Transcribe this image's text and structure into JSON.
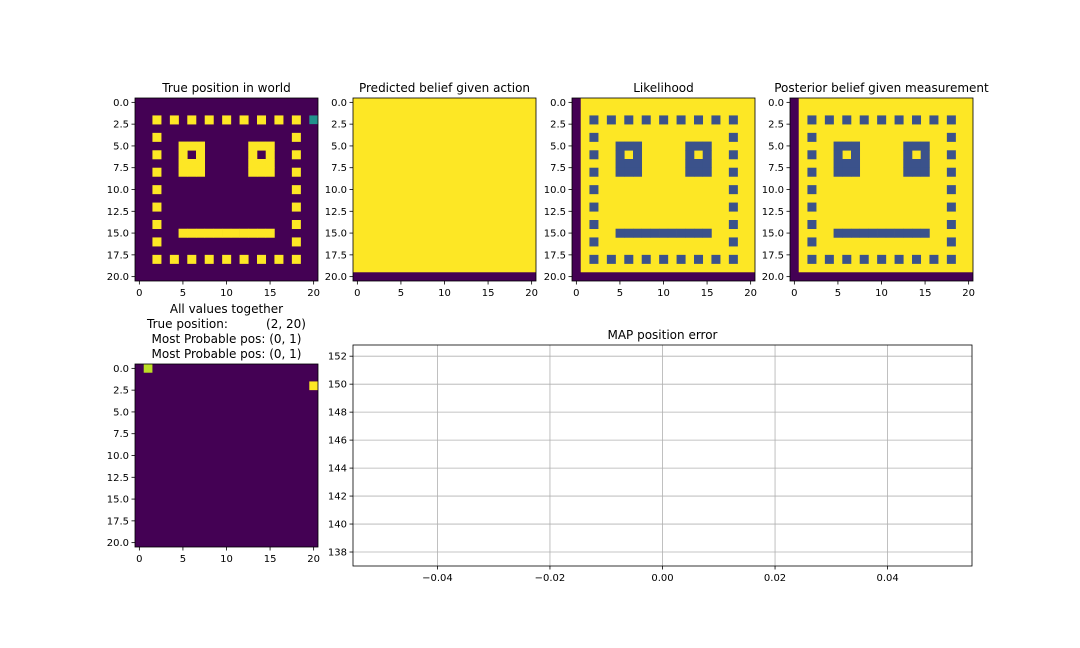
{
  "colors": {
    "purple": "#440154",
    "yellow": "#fde725",
    "blue": "#3b528b",
    "teal": "#21918c",
    "lime": "#bddf26",
    "grid": "#b0b0b0",
    "axis": "#000000"
  },
  "chart_data": [
    {
      "type": "heatmap",
      "title": "True position in world",
      "ylim": [
        20,
        0
      ],
      "xlim": [
        0,
        20
      ],
      "xticks": [
        "0",
        "5",
        "10",
        "15",
        "20"
      ],
      "yticks": [
        "0.0",
        "2.5",
        "5.0",
        "7.5",
        "10.0",
        "12.5",
        "15.0",
        "17.5",
        "20.0"
      ],
      "background": "purple",
      "color": "yellow",
      "cells": [
        [
          2,
          2
        ],
        [
          2,
          4
        ],
        [
          2,
          6
        ],
        [
          2,
          8
        ],
        [
          2,
          10
        ],
        [
          2,
          12
        ],
        [
          2,
          14
        ],
        [
          2,
          16
        ],
        [
          2,
          18
        ],
        [
          4,
          2
        ],
        [
          4,
          18
        ],
        [
          6,
          2
        ],
        [
          6,
          18
        ],
        [
          8,
          2
        ],
        [
          8,
          18
        ],
        [
          10,
          2
        ],
        [
          10,
          18
        ],
        [
          12,
          2
        ],
        [
          12,
          18
        ],
        [
          14,
          2
        ],
        [
          14,
          18
        ],
        [
          16,
          2
        ],
        [
          16,
          18
        ],
        [
          18,
          2
        ],
        [
          18,
          4
        ],
        [
          18,
          6
        ],
        [
          18,
          8
        ],
        [
          18,
          10
        ],
        [
          18,
          12
        ],
        [
          18,
          14
        ],
        [
          18,
          16
        ],
        [
          18,
          18
        ],
        [
          5,
          5
        ],
        [
          5,
          6
        ],
        [
          5,
          7
        ],
        [
          6,
          5
        ],
        [
          6,
          7
        ],
        [
          7,
          5
        ],
        [
          7,
          6
        ],
        [
          7,
          7
        ],
        [
          8,
          5
        ],
        [
          8,
          6
        ],
        [
          8,
          7
        ],
        [
          5,
          13
        ],
        [
          5,
          14
        ],
        [
          5,
          15
        ],
        [
          6,
          13
        ],
        [
          6,
          15
        ],
        [
          7,
          13
        ],
        [
          7,
          14
        ],
        [
          7,
          15
        ],
        [
          8,
          13
        ],
        [
          8,
          14
        ],
        [
          8,
          15
        ],
        [
          15,
          5
        ],
        [
          15,
          6
        ],
        [
          15,
          7
        ],
        [
          15,
          8
        ],
        [
          15,
          9
        ],
        [
          15,
          10
        ],
        [
          15,
          11
        ],
        [
          15,
          12
        ],
        [
          15,
          13
        ],
        [
          15,
          14
        ],
        [
          15,
          15
        ]
      ],
      "marker": {
        "row": 2,
        "col": 20,
        "color": "teal"
      }
    },
    {
      "type": "heatmap",
      "title": "Predicted belief given action",
      "ylim": [
        20,
        0
      ],
      "xlim": [
        0,
        20
      ],
      "xticks": [
        "0",
        "5",
        "10",
        "15",
        "20"
      ],
      "yticks": [
        "0.0",
        "2.5",
        "5.0",
        "7.5",
        "10.0",
        "12.5",
        "15.0",
        "17.5",
        "20.0"
      ],
      "background": "yellow",
      "edge_rows": [
        20
      ],
      "edge_cols": [],
      "edge_color": "purple"
    },
    {
      "type": "heatmap",
      "title": "Likelihood",
      "ylim": [
        20,
        0
      ],
      "xlim": [
        0,
        20
      ],
      "xticks": [
        "0",
        "5",
        "10",
        "15",
        "20"
      ],
      "yticks": [
        "0.0",
        "2.5",
        "5.0",
        "7.5",
        "10.0",
        "12.5",
        "15.0",
        "17.5",
        "20.0"
      ],
      "background": "yellow",
      "color": "blue",
      "edge_rows": [
        20
      ],
      "edge_cols": [
        0
      ],
      "edge_color": "purple"
    },
    {
      "type": "heatmap",
      "title": "Posterior belief given measurement",
      "ylim": [
        20,
        0
      ],
      "xlim": [
        0,
        20
      ],
      "xticks": [
        "0",
        "5",
        "10",
        "15",
        "20"
      ],
      "yticks": [
        "0.0",
        "2.5",
        "5.0",
        "7.5",
        "10.0",
        "12.5",
        "15.0",
        "17.5",
        "20.0"
      ],
      "background": "yellow",
      "color": "blue",
      "edge_rows": [
        20
      ],
      "edge_cols": [
        0
      ],
      "edge_color": "purple"
    },
    {
      "type": "heatmap",
      "title_lines": [
        "All values together",
        "True position:          (2, 20)",
        "Most Probable pos: (0, 1)",
        "Most Probable pos: (0, 1)"
      ],
      "ylim": [
        20,
        0
      ],
      "xlim": [
        0,
        20
      ],
      "xticks": [
        "0",
        "5",
        "10",
        "15",
        "20"
      ],
      "yticks": [
        "0.0",
        "2.5",
        "5.0",
        "7.5",
        "10.0",
        "12.5",
        "15.0",
        "17.5",
        "20.0"
      ],
      "background": "purple",
      "points": [
        {
          "row": 0,
          "col": 1,
          "color": "lime"
        },
        {
          "row": 2,
          "col": 20,
          "color": "yellow"
        }
      ]
    },
    {
      "type": "line",
      "title": "MAP position error",
      "grid": true,
      "xlim": [
        -0.055,
        0.055
      ],
      "ylim": [
        137,
        152.8
      ],
      "xticks": [
        -0.04,
        -0.02,
        0.0,
        0.02,
        0.04
      ],
      "xtick_labels": [
        "−0.04",
        "−0.02",
        "0.00",
        "0.02",
        "0.04"
      ],
      "yticks": [
        138,
        140,
        142,
        144,
        146,
        148,
        150,
        152
      ],
      "ytick_labels": [
        "138",
        "140",
        "142",
        "144",
        "146",
        "148",
        "150",
        "152"
      ],
      "series": []
    }
  ]
}
